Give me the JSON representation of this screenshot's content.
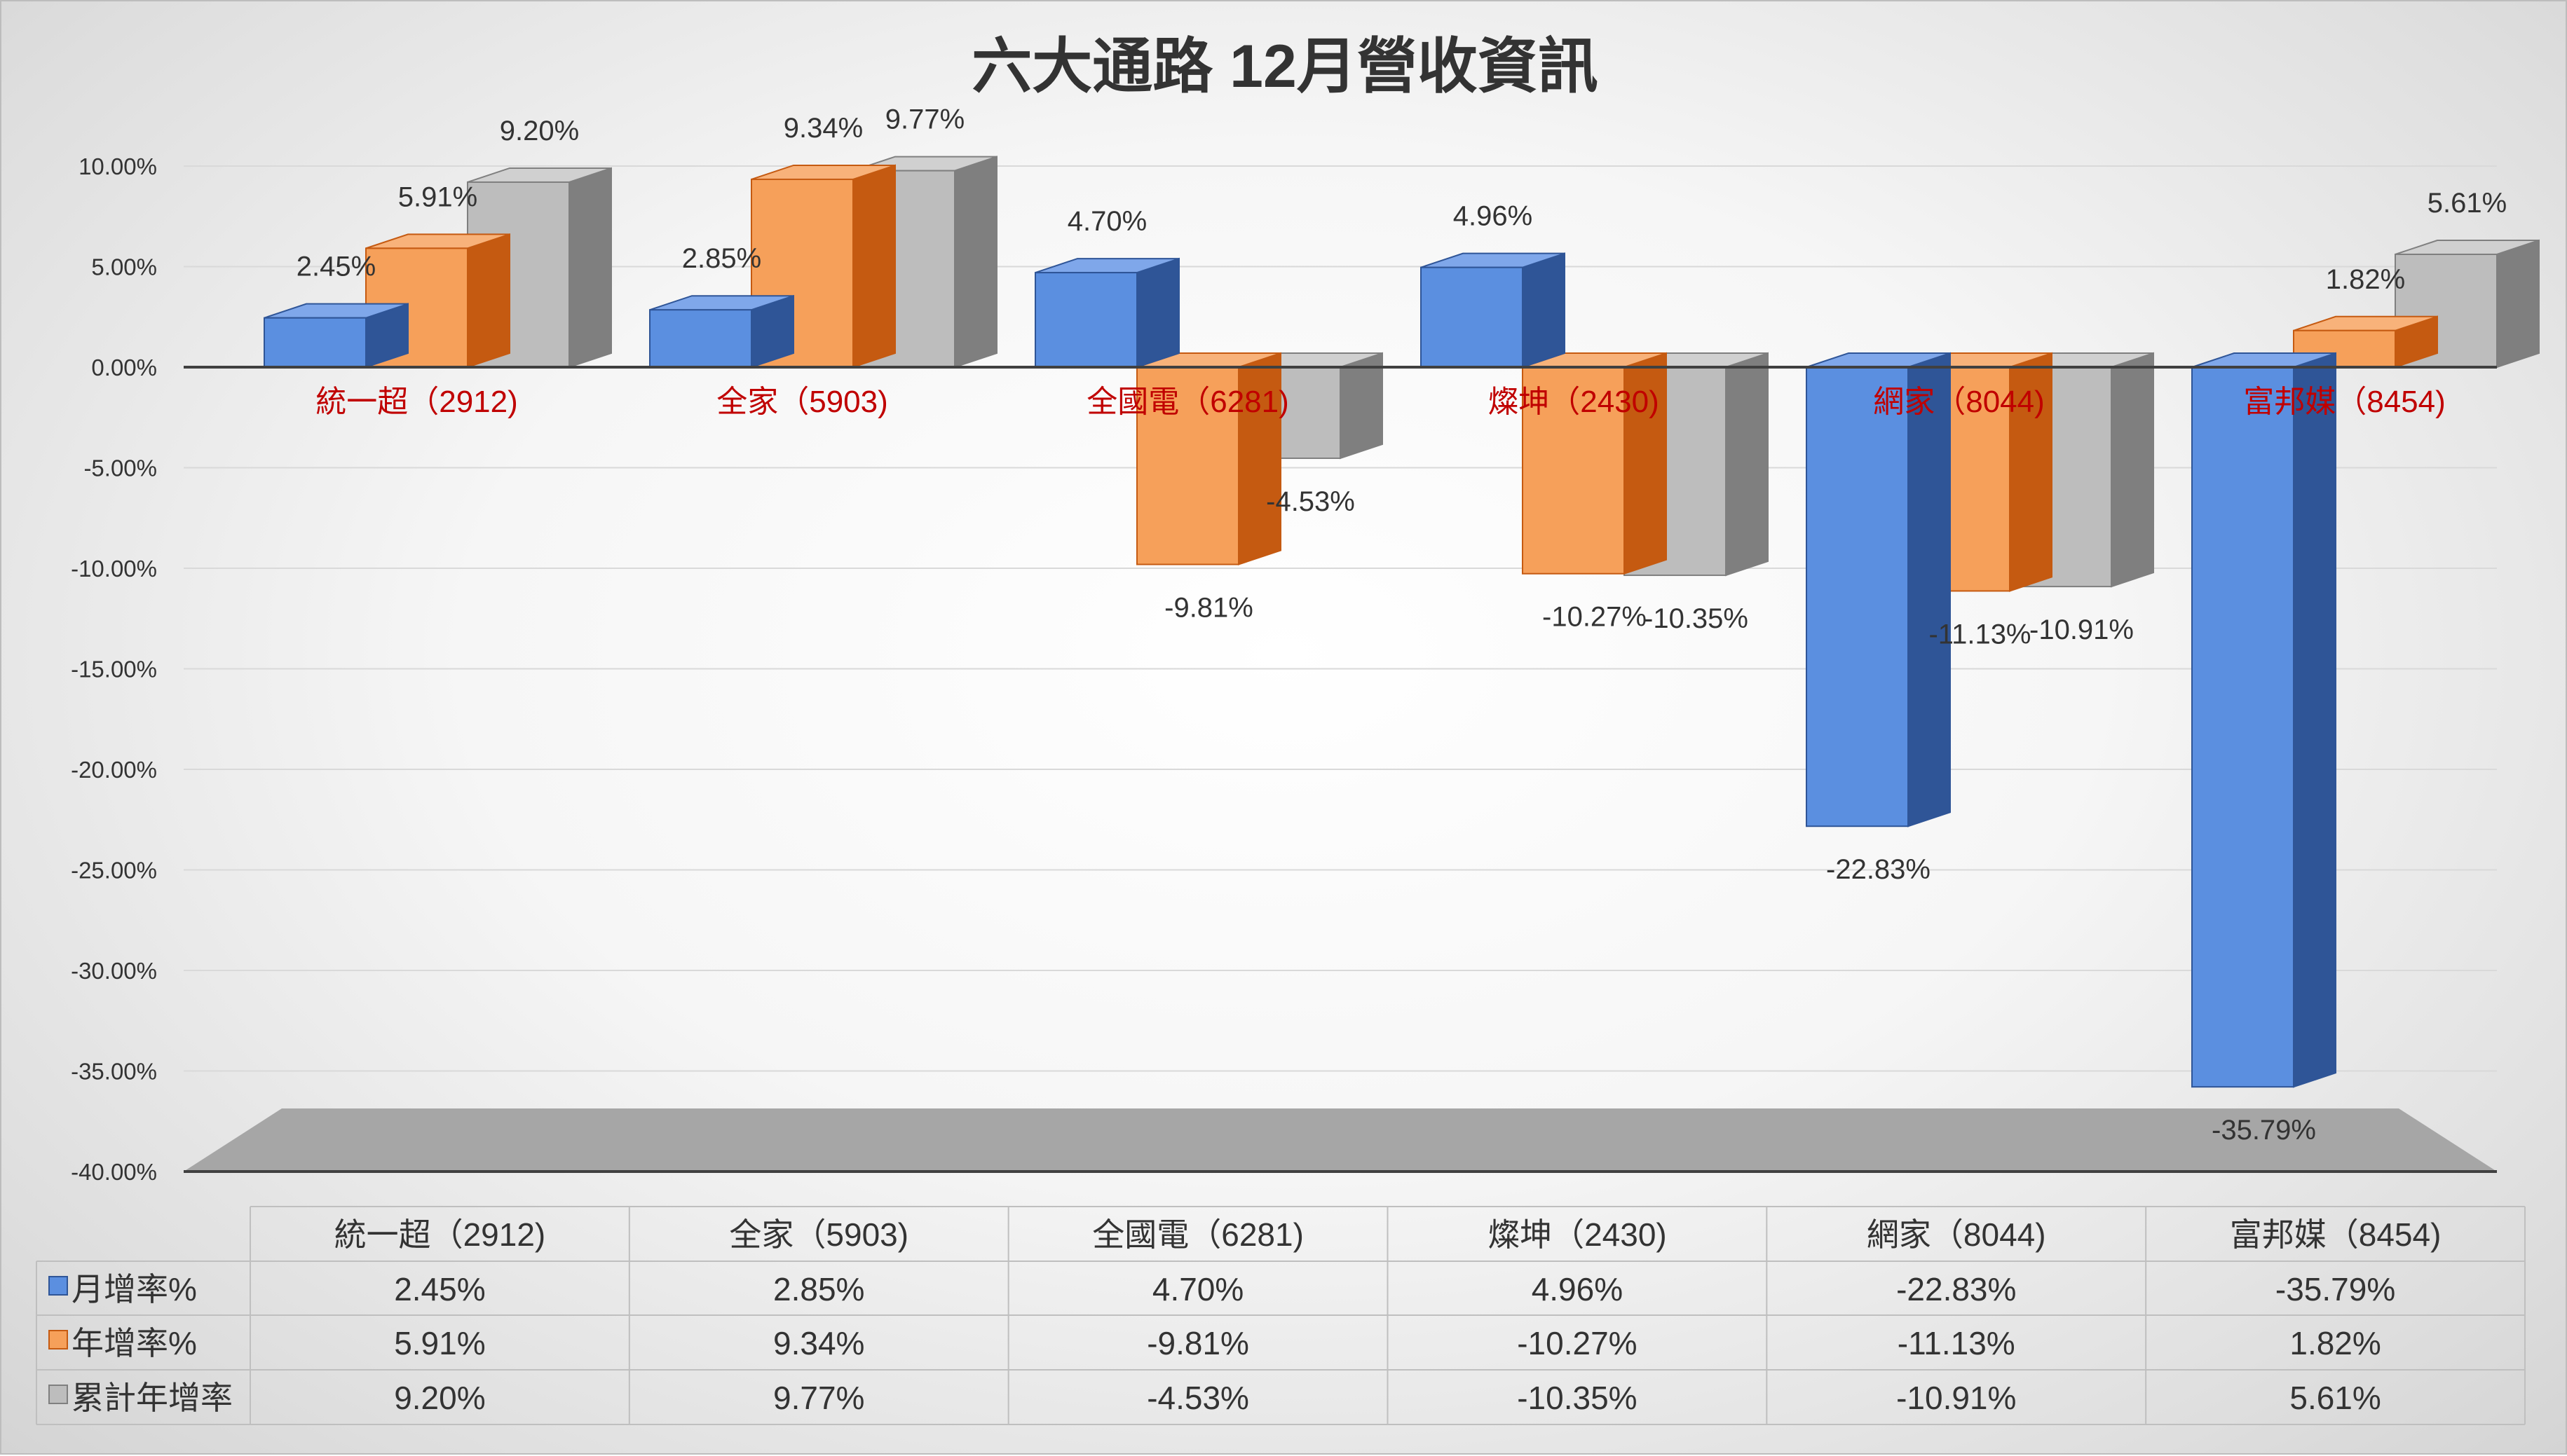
{
  "chart_data": {
    "type": "bar",
    "title": "六大通路 12月營收資訊",
    "categories": [
      "統一超（2912)",
      "全家（5903)",
      "全國電（6281)",
      "燦坤（2430)",
      "網家（8044)",
      "富邦媒（8454)"
    ],
    "series": [
      {
        "name": "月增率%",
        "values": [
          2.45,
          2.85,
          4.7,
          4.96,
          -22.83,
          -35.79
        ],
        "labels": [
          "2.45%",
          "2.85%",
          "4.70%",
          "4.96%",
          "-22.83%",
          "-35.79%"
        ]
      },
      {
        "name": "年增率%",
        "values": [
          5.91,
          9.34,
          -9.81,
          -10.27,
          -11.13,
          1.82
        ],
        "labels": [
          "5.91%",
          "9.34%",
          "-9.81%",
          "-10.27%",
          "-11.13%",
          "1.82%"
        ]
      },
      {
        "name": "累計年增率",
        "values": [
          9.2,
          9.77,
          -4.53,
          -10.35,
          -10.91,
          5.61
        ],
        "labels": [
          "9.20%",
          "9.77%",
          "-4.53%",
          "-10.35%",
          "-10.91%",
          "5.61%"
        ]
      }
    ],
    "yticks": [
      "10.00%",
      "5.00%",
      "0.00%",
      "-5.00%",
      "-10.00%",
      "-15.00%",
      "-20.00%",
      "-25.00%",
      "-30.00%",
      "-35.00%",
      "-40.00%"
    ],
    "ylim": [
      -40,
      10
    ],
    "grid": true,
    "legend": "data-table",
    "colors": [
      "#4472C4",
      "#ED7D31",
      "#A5A5A5"
    ]
  }
}
